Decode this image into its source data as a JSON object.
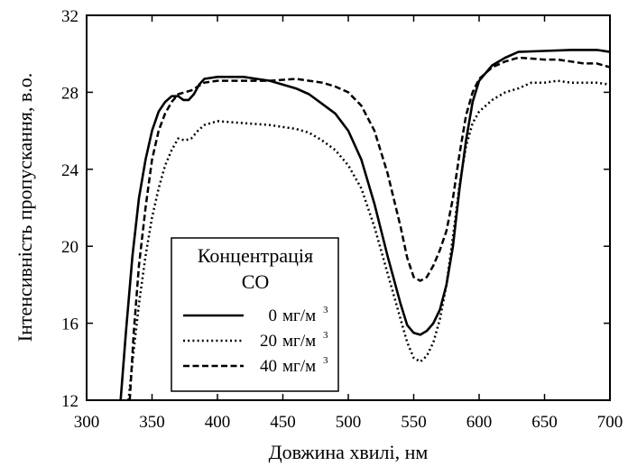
{
  "chart_data": {
    "type": "line",
    "xlabel": "Довжина хвилі, нм",
    "ylabel": "Інтенсивність пропускання, в.о.",
    "xlim": [
      300,
      700
    ],
    "ylim": [
      12,
      32
    ],
    "xticks": [
      300,
      350,
      400,
      450,
      500,
      550,
      600,
      650,
      700
    ],
    "yticks": [
      12,
      16,
      20,
      24,
      28,
      32
    ],
    "grid": false,
    "legend": {
      "position": "bottom-left",
      "title_line1": "Концентрація",
      "title_line2": "CO"
    },
    "series": [
      {
        "name": "0 мг/м³",
        "label_value": "0",
        "label_unit": "мг/м",
        "label_sup": "3",
        "style": "solid",
        "points": [
          [
            326,
            12
          ],
          [
            330,
            15.5
          ],
          [
            335,
            19.5
          ],
          [
            340,
            22.5
          ],
          [
            345,
            24.5
          ],
          [
            350,
            26
          ],
          [
            355,
            27
          ],
          [
            360,
            27.5
          ],
          [
            365,
            27.8
          ],
          [
            370,
            27.8
          ],
          [
            374,
            27.6
          ],
          [
            378,
            27.6
          ],
          [
            382,
            27.9
          ],
          [
            386,
            28.4
          ],
          [
            390,
            28.7
          ],
          [
            400,
            28.8
          ],
          [
            410,
            28.8
          ],
          [
            420,
            28.8
          ],
          [
            430,
            28.7
          ],
          [
            440,
            28.6
          ],
          [
            450,
            28.4
          ],
          [
            460,
            28.2
          ],
          [
            470,
            27.9
          ],
          [
            480,
            27.4
          ],
          [
            490,
            26.9
          ],
          [
            500,
            26
          ],
          [
            510,
            24.5
          ],
          [
            520,
            22.2
          ],
          [
            530,
            19.5
          ],
          [
            540,
            17
          ],
          [
            545,
            15.9
          ],
          [
            550,
            15.5
          ],
          [
            555,
            15.4
          ],
          [
            560,
            15.6
          ],
          [
            565,
            16
          ],
          [
            570,
            16.7
          ],
          [
            575,
            18
          ],
          [
            580,
            20
          ],
          [
            585,
            23
          ],
          [
            590,
            25.5
          ],
          [
            595,
            27.5
          ],
          [
            600,
            28.6
          ],
          [
            610,
            29.4
          ],
          [
            620,
            29.8
          ],
          [
            630,
            30.1
          ],
          [
            650,
            30.15
          ],
          [
            670,
            30.2
          ],
          [
            690,
            30.2
          ],
          [
            700,
            30.1
          ]
        ]
      },
      {
        "name": "20 мг/м³",
        "label_value": "20",
        "label_unit": "мг/м",
        "label_sup": "3",
        "style": "dotted",
        "points": [
          [
            332,
            12
          ],
          [
            335,
            14
          ],
          [
            340,
            17
          ],
          [
            345,
            19.5
          ],
          [
            350,
            21.5
          ],
          [
            355,
            23
          ],
          [
            360,
            24.2
          ],
          [
            365,
            25
          ],
          [
            370,
            25.6
          ],
          [
            375,
            25.5
          ],
          [
            380,
            25.6
          ],
          [
            385,
            26
          ],
          [
            390,
            26.3
          ],
          [
            400,
            26.5
          ],
          [
            420,
            26.4
          ],
          [
            440,
            26.3
          ],
          [
            460,
            26.1
          ],
          [
            470,
            25.9
          ],
          [
            480,
            25.5
          ],
          [
            490,
            25
          ],
          [
            500,
            24.2
          ],
          [
            510,
            23
          ],
          [
            520,
            21
          ],
          [
            530,
            18.6
          ],
          [
            540,
            16.2
          ],
          [
            545,
            15
          ],
          [
            550,
            14.2
          ],
          [
            555,
            14
          ],
          [
            560,
            14.3
          ],
          [
            565,
            15
          ],
          [
            570,
            16.2
          ],
          [
            575,
            18
          ],
          [
            580,
            20.5
          ],
          [
            585,
            23.2
          ],
          [
            590,
            25.2
          ],
          [
            595,
            26.4
          ],
          [
            600,
            27
          ],
          [
            610,
            27.6
          ],
          [
            620,
            28
          ],
          [
            630,
            28.2
          ],
          [
            640,
            28.5
          ],
          [
            650,
            28.5
          ],
          [
            660,
            28.6
          ],
          [
            670,
            28.5
          ],
          [
            680,
            28.5
          ],
          [
            690,
            28.5
          ],
          [
            700,
            28.4
          ]
        ]
      },
      {
        "name": "40 мг/м³",
        "label_value": "40",
        "label_unit": "мг/м",
        "label_sup": "3",
        "style": "dashed",
        "points": [
          [
            333,
            12
          ],
          [
            336,
            15.5
          ],
          [
            340,
            19
          ],
          [
            345,
            22
          ],
          [
            350,
            24.5
          ],
          [
            355,
            26
          ],
          [
            360,
            26.9
          ],
          [
            365,
            27.5
          ],
          [
            370,
            27.9
          ],
          [
            375,
            28
          ],
          [
            380,
            28.1
          ],
          [
            385,
            28.3
          ],
          [
            390,
            28.5
          ],
          [
            400,
            28.6
          ],
          [
            420,
            28.6
          ],
          [
            440,
            28.6
          ],
          [
            460,
            28.7
          ],
          [
            470,
            28.6
          ],
          [
            480,
            28.5
          ],
          [
            490,
            28.3
          ],
          [
            500,
            28
          ],
          [
            510,
            27.3
          ],
          [
            520,
            26
          ],
          [
            530,
            23.8
          ],
          [
            540,
            21
          ],
          [
            545,
            19.4
          ],
          [
            550,
            18.4
          ],
          [
            555,
            18.2
          ],
          [
            560,
            18.4
          ],
          [
            565,
            19
          ],
          [
            570,
            19.8
          ],
          [
            575,
            20.8
          ],
          [
            580,
            22.5
          ],
          [
            585,
            24.8
          ],
          [
            590,
            26.8
          ],
          [
            595,
            28
          ],
          [
            600,
            28.7
          ],
          [
            610,
            29.3
          ],
          [
            620,
            29.6
          ],
          [
            630,
            29.8
          ],
          [
            640,
            29.75
          ],
          [
            650,
            29.7
          ],
          [
            660,
            29.7
          ],
          [
            670,
            29.6
          ],
          [
            680,
            29.5
          ],
          [
            690,
            29.5
          ],
          [
            700,
            29.3
          ]
        ]
      }
    ]
  }
}
